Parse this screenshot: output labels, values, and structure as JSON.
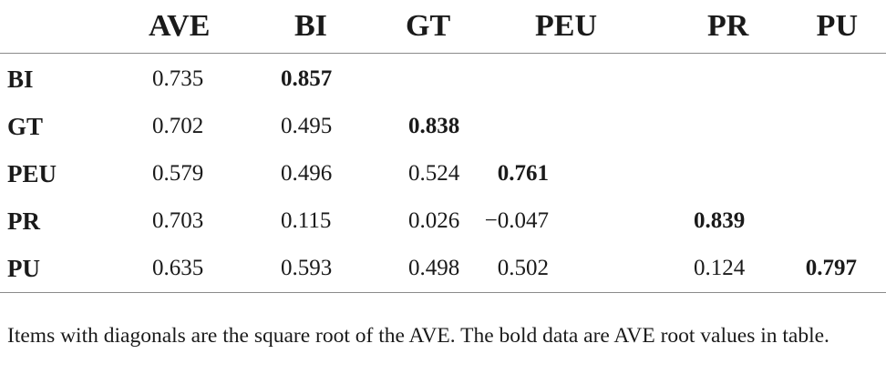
{
  "table": {
    "corner": "",
    "columns": [
      "AVE",
      "BI",
      "GT",
      "PEU",
      "PR",
      "PU"
    ],
    "rows": [
      {
        "label": "BI",
        "cells": [
          "0.735",
          "0.857",
          "",
          "",
          "",
          ""
        ]
      },
      {
        "label": "GT",
        "cells": [
          "0.702",
          "0.495",
          "0.838",
          "",
          "",
          ""
        ]
      },
      {
        "label": "PEU",
        "cells": [
          "0.579",
          "0.496",
          "0.524",
          "0.761",
          "",
          ""
        ]
      },
      {
        "label": "PR",
        "cells": [
          "0.703",
          "0.115",
          "0.026",
          "−0.047",
          "0.839",
          ""
        ]
      },
      {
        "label": "PU",
        "cells": [
          "0.635",
          "0.593",
          "0.498",
          "0.502",
          "0.124",
          "0.797"
        ]
      }
    ]
  },
  "footnote": "Items with diagonals are the square root of the AVE. The bold data are AVE root values in table."
}
